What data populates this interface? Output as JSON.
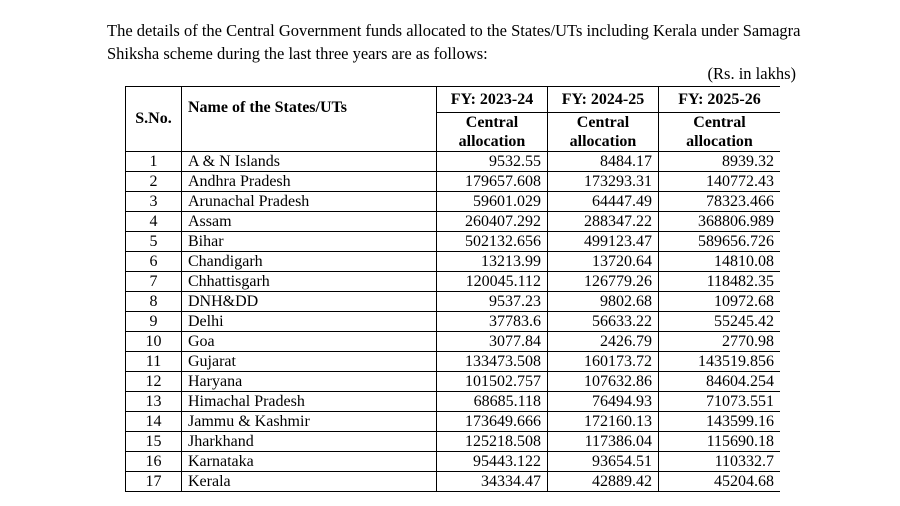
{
  "intro": "The details of the Central Government funds allocated to the States/UTs including Kerala under Samagra Shiksha scheme during the last three years are as follows:",
  "unit": "(Rs. in lakhs)",
  "table": {
    "headers": {
      "sno": "S.No.",
      "name": "Name of the States/UTs",
      "years": [
        "FY: 2023-24",
        "FY: 2024-25",
        "FY: 2025-26"
      ],
      "subheader": "Central allocation"
    },
    "rows": [
      {
        "sno": "1",
        "name": "A & N Islands",
        "v1": "9532.55",
        "v2": "8484.17",
        "v3": "8939.32"
      },
      {
        "sno": "2",
        "name": "Andhra Pradesh",
        "v1": "179657.608",
        "v2": "173293.31",
        "v3": "140772.43"
      },
      {
        "sno": "3",
        "name": "Arunachal Pradesh",
        "v1": "59601.029",
        "v2": "64447.49",
        "v3": "78323.466"
      },
      {
        "sno": "4",
        "name": "Assam",
        "v1": "260407.292",
        "v2": "288347.22",
        "v3": "368806.989"
      },
      {
        "sno": "5",
        "name": "Bihar",
        "v1": "502132.656",
        "v2": "499123.47",
        "v3": "589656.726"
      },
      {
        "sno": "6",
        "name": "Chandigarh",
        "v1": "13213.99",
        "v2": "13720.64",
        "v3": "14810.08"
      },
      {
        "sno": "7",
        "name": "Chhattisgarh",
        "v1": "120045.112",
        "v2": "126779.26",
        "v3": "118482.35"
      },
      {
        "sno": "8",
        "name": "DNH&DD",
        "v1": "9537.23",
        "v2": "9802.68",
        "v3": "10972.68"
      },
      {
        "sno": "9",
        "name": "Delhi",
        "v1": "37783.6",
        "v2": "56633.22",
        "v3": "55245.42"
      },
      {
        "sno": "10",
        "name": "Goa",
        "v1": "3077.84",
        "v2": "2426.79",
        "v3": "2770.98"
      },
      {
        "sno": "11",
        "name": "Gujarat",
        "v1": "133473.508",
        "v2": "160173.72",
        "v3": "143519.856"
      },
      {
        "sno": "12",
        "name": "Haryana",
        "v1": "101502.757",
        "v2": "107632.86",
        "v3": "84604.254"
      },
      {
        "sno": "13",
        "name": "Himachal Pradesh",
        "v1": "68685.118",
        "v2": "76494.93",
        "v3": "71073.551"
      },
      {
        "sno": "14",
        "name": "Jammu & Kashmir",
        "v1": "173649.666",
        "v2": "172160.13",
        "v3": "143599.16"
      },
      {
        "sno": "15",
        "name": "Jharkhand",
        "v1": "125218.508",
        "v2": "117386.04",
        "v3": "115690.18"
      },
      {
        "sno": "16",
        "name": "Karnataka",
        "v1": "95443.122",
        "v2": "93654.51",
        "v3": "110332.7"
      },
      {
        "sno": "17",
        "name": "Kerala",
        "v1": "34334.47",
        "v2": "42889.42",
        "v3": "45204.68"
      }
    ]
  }
}
